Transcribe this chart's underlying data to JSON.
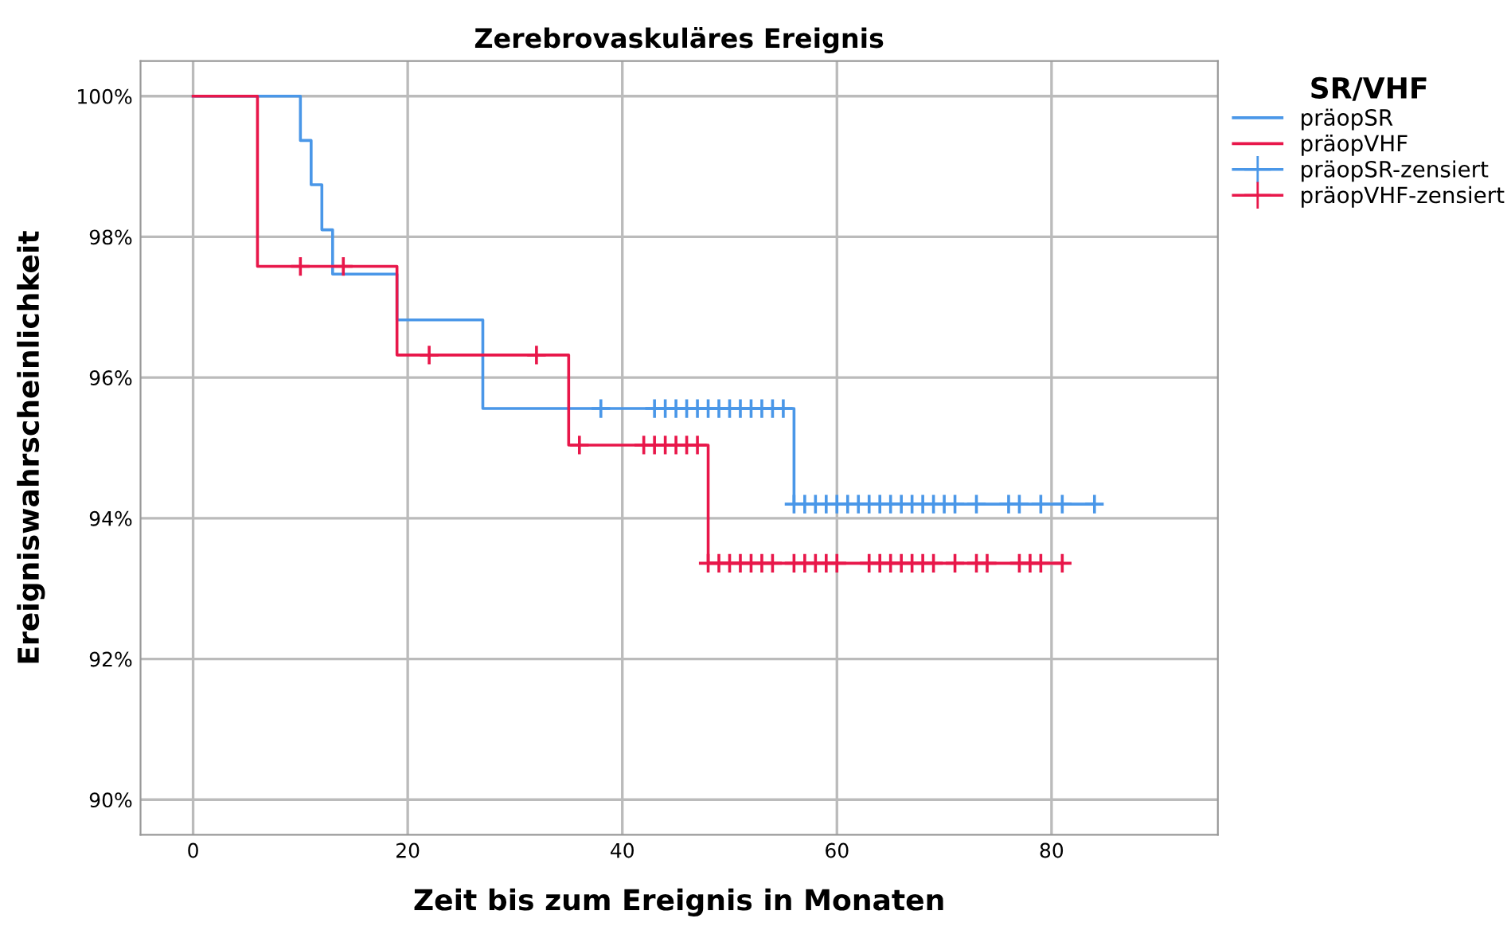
{
  "chart_data": {
    "type": "step",
    "title": "Zerebrovaskuläres Ereignis",
    "xlabel": "Zeit bis zum Ereignis in Monaten",
    "ylabel": "Ereigniswahrscheinlichkeit",
    "legend_title": "SR/VHF",
    "legend": "top right",
    "grid": true,
    "xlim": [
      -4.9,
      95.5
    ],
    "xticks": [
      0,
      20,
      40,
      60,
      80
    ],
    "ylim": [
      89.5,
      100.5
    ],
    "yticks": [
      {
        "value": 90,
        "label": "90%"
      },
      {
        "value": 92,
        "label": "92%"
      },
      {
        "value": 94,
        "label": "94%"
      },
      {
        "value": 96,
        "label": "96%"
      },
      {
        "value": 98,
        "label": "98%"
      },
      {
        "value": 100,
        "label": "100%"
      }
    ],
    "series": [
      {
        "name": "präopSR",
        "color": "#4a97e8",
        "x": [
          0,
          10,
          11,
          12,
          13,
          19,
          27,
          56,
          84
        ],
        "values": [
          100,
          99.37,
          98.74,
          98.1,
          97.47,
          96.82,
          95.56,
          94.2,
          94.2
        ]
      },
      {
        "name": "präopVHF",
        "color": "#e8174a",
        "x": [
          0,
          6,
          19,
          35,
          48,
          81
        ],
        "values": [
          100,
          97.58,
          96.32,
          95.04,
          93.36,
          93.36
        ]
      },
      {
        "name": "präopSR-zensiert",
        "type": "scatter",
        "marker": "cross",
        "color": "#4a97e8",
        "x": [
          38,
          43,
          44,
          45,
          46,
          47,
          48,
          49,
          50,
          51,
          52,
          53,
          54,
          55,
          56,
          57,
          58,
          59,
          60,
          61,
          62,
          63,
          64,
          65,
          66,
          67,
          68,
          69,
          70,
          71,
          73,
          76,
          77,
          79,
          81,
          84
        ],
        "values": [
          95.56,
          95.56,
          95.56,
          95.56,
          95.56,
          95.56,
          95.56,
          95.56,
          95.56,
          95.56,
          95.56,
          95.56,
          95.56,
          95.56,
          94.2,
          94.2,
          94.2,
          94.2,
          94.2,
          94.2,
          94.2,
          94.2,
          94.2,
          94.2,
          94.2,
          94.2,
          94.2,
          94.2,
          94.2,
          94.2,
          94.2,
          94.2,
          94.2,
          94.2,
          94.2,
          94.2
        ]
      },
      {
        "name": "präopVHF-zensiert",
        "type": "scatter",
        "marker": "cross",
        "color": "#e8174a",
        "x": [
          10,
          14,
          22,
          32,
          36,
          42,
          43,
          44,
          45,
          46,
          47,
          48,
          49,
          50,
          51,
          52,
          53,
          54,
          56,
          57,
          58,
          59,
          60,
          63,
          64,
          65,
          66,
          67,
          68,
          69,
          71,
          73,
          74,
          77,
          78,
          79,
          81
        ],
        "values": [
          97.58,
          97.58,
          96.32,
          96.32,
          95.04,
          95.04,
          95.04,
          95.04,
          95.04,
          95.04,
          95.04,
          93.36,
          93.36,
          93.36,
          93.36,
          93.36,
          93.36,
          93.36,
          93.36,
          93.36,
          93.36,
          93.36,
          93.36,
          93.36,
          93.36,
          93.36,
          93.36,
          93.36,
          93.36,
          93.36,
          93.36,
          93.36,
          93.36,
          93.36,
          93.36,
          93.36,
          93.36
        ]
      }
    ]
  }
}
